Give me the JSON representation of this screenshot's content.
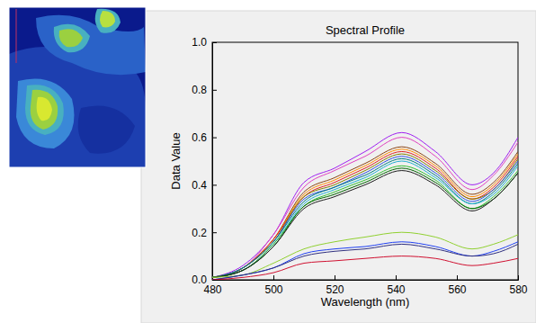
{
  "chart_data": {
    "type": "line",
    "title": "Spectral Profile",
    "x_label": "Wavelength (nm)",
    "y_label": "Data Value",
    "x": [
      480,
      490,
      500,
      510,
      520,
      530,
      542,
      553,
      565,
      572,
      580
    ],
    "series": [
      {
        "color": "#a020f0",
        "values": [
          0.01,
          0.06,
          0.19,
          0.41,
          0.47,
          0.54,
          0.62,
          0.54,
          0.4,
          0.45,
          0.6
        ]
      },
      {
        "color": "#e040c0",
        "values": [
          0.01,
          0.05,
          0.19,
          0.39,
          0.46,
          0.52,
          0.6,
          0.52,
          0.38,
          0.44,
          0.58
        ]
      },
      {
        "color": "#8b4513",
        "values": [
          0.01,
          0.05,
          0.17,
          0.37,
          0.43,
          0.49,
          0.56,
          0.49,
          0.36,
          0.41,
          0.54
        ]
      },
      {
        "color": "#ff8c00",
        "values": [
          0.01,
          0.05,
          0.17,
          0.36,
          0.42,
          0.48,
          0.55,
          0.48,
          0.35,
          0.4,
          0.53
        ]
      },
      {
        "color": "#e02020",
        "values": [
          0.01,
          0.05,
          0.17,
          0.35,
          0.41,
          0.47,
          0.54,
          0.47,
          0.34,
          0.39,
          0.52
        ]
      },
      {
        "color": "#808000",
        "values": [
          0.01,
          0.05,
          0.16,
          0.35,
          0.4,
          0.46,
          0.53,
          0.46,
          0.34,
          0.38,
          0.51
        ]
      },
      {
        "color": "#3050e0",
        "values": [
          0.01,
          0.05,
          0.16,
          0.34,
          0.39,
          0.45,
          0.52,
          0.45,
          0.33,
          0.38,
          0.5
        ]
      },
      {
        "color": "#008080",
        "values": [
          0.01,
          0.05,
          0.16,
          0.33,
          0.39,
          0.44,
          0.51,
          0.44,
          0.32,
          0.37,
          0.49
        ]
      },
      {
        "color": "#20b0d0",
        "values": [
          0.01,
          0.04,
          0.15,
          0.32,
          0.38,
          0.43,
          0.5,
          0.43,
          0.32,
          0.36,
          0.48
        ]
      },
      {
        "color": "#30c030",
        "values": [
          0.01,
          0.04,
          0.15,
          0.31,
          0.37,
          0.42,
          0.48,
          0.42,
          0.3,
          0.35,
          0.46
        ]
      },
      {
        "color": "#006400",
        "values": [
          0.01,
          0.04,
          0.14,
          0.31,
          0.36,
          0.41,
          0.47,
          0.41,
          0.3,
          0.34,
          0.45
        ]
      },
      {
        "color": "#202020",
        "values": [
          0.01,
          0.04,
          0.14,
          0.3,
          0.35,
          0.4,
          0.46,
          0.4,
          0.29,
          0.34,
          0.45
        ]
      },
      {
        "color": "#90d030",
        "values": [
          0.01,
          0.02,
          0.07,
          0.13,
          0.16,
          0.18,
          0.2,
          0.18,
          0.13,
          0.15,
          0.19
        ]
      },
      {
        "color": "#2040f0",
        "values": [
          0.0,
          0.02,
          0.05,
          0.11,
          0.13,
          0.14,
          0.16,
          0.14,
          0.1,
          0.12,
          0.16
        ]
      },
      {
        "color": "#303080",
        "values": [
          0.0,
          0.02,
          0.05,
          0.1,
          0.12,
          0.13,
          0.15,
          0.13,
          0.1,
          0.11,
          0.15
        ]
      },
      {
        "color": "#d01030",
        "values": [
          0.0,
          0.01,
          0.03,
          0.07,
          0.08,
          0.09,
          0.1,
          0.09,
          0.06,
          0.07,
          0.09
        ]
      }
    ],
    "xlim": [
      480,
      580
    ],
    "xticks": [
      480,
      500,
      520,
      540,
      560,
      580
    ],
    "ylim": [
      0,
      1
    ],
    "yticks": [
      {
        "value": 0,
        "label": "0.0"
      },
      0.2,
      0.4,
      0.6,
      0.8,
      {
        "value": 1,
        "label": "1.0"
      }
    ],
    "grid": false
  }
}
